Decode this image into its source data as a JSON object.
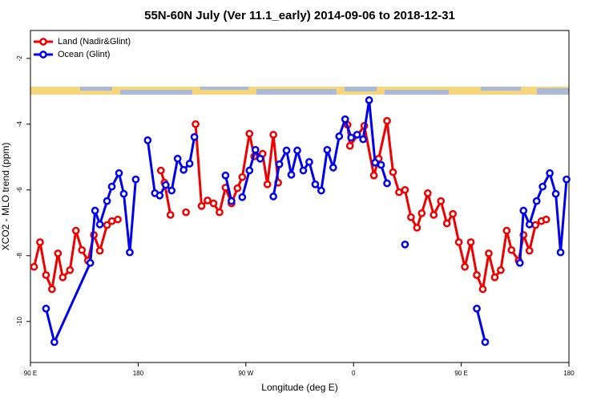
{
  "chart_data": {
    "type": "line",
    "title": "55N-60N July (Ver 11.1_early)   2014-09-06 to 2018-12-31",
    "xlabel": "Longitude (deg E)",
    "ylabel": "XCO2 - MLO trend (ppm)",
    "xlim": [
      90,
      540
    ],
    "ylim": [
      -11.25,
      -1.15
    ],
    "xticks": [
      {
        "value": 90,
        "label": "90 E"
      },
      180,
      {
        "value": 270,
        "label": "90 W"
      },
      {
        "value": 360,
        "label": "0"
      },
      {
        "value": 450,
        "label": "90 E"
      },
      {
        "value": 540,
        "label": "180"
      }
    ],
    "yticks": [
      -2,
      -4,
      -6,
      -8,
      -10
    ],
    "legend": "top-left",
    "series": [
      {
        "name": "Land (Nadir&Glint)",
        "color": "#ee0000",
        "x": [
          93,
          98,
          103,
          108,
          113,
          117,
          123,
          128,
          133,
          138,
          143,
          148,
          154,
          158,
          163,
          null,
          199,
          202,
          207,
          null,
          220,
          null,
          228,
          233,
          238,
          243,
          248,
          253,
          258,
          263,
          267,
          273,
          277,
          284,
          288,
          293,
          297,
          null,
          355,
          357,
          369,
          377,
          381,
          388,
          393,
          398,
          403,
          408,
          413,
          417,
          422,
          427,
          433,
          438,
          443,
          448,
          453,
          458,
          463,
          468,
          473,
          478,
          483,
          488,
          492,
          498,
          502,
          507,
          512,
          517,
          521
        ],
        "values": [
          -8.34,
          -7.59,
          -8.59,
          -9.02,
          -7.93,
          -8.66,
          -8.44,
          -7.24,
          -7.83,
          -8.15,
          -7.37,
          -7.85,
          -7.07,
          -6.95,
          -6.9,
          null,
          -5.41,
          -5.78,
          -6.76,
          null,
          -6.68,
          null,
          -4.0,
          -6.49,
          -6.32,
          -6.41,
          -6.68,
          -5.93,
          -6.41,
          -5.95,
          -5.61,
          -4.29,
          -4.98,
          -4.9,
          -5.83,
          -4.32,
          -5.78,
          null,
          -4.02,
          -4.66,
          -4.05,
          -5.56,
          -5.05,
          -3.9,
          -5.46,
          -6.07,
          -6.0,
          -6.83,
          -7.15,
          -6.71,
          -6.1,
          -6.76,
          -6.34,
          -7.02,
          -6.73,
          -7.59,
          -8.34,
          -7.59,
          -8.59,
          -9.02,
          -7.93,
          -8.66,
          -8.44,
          -7.24,
          -7.83,
          -8.15,
          -7.37,
          -7.85,
          -7.07,
          -6.95,
          -6.9
        ]
      },
      {
        "name": "Ocean (Glint)",
        "color": "#0000ee",
        "x": [
          103,
          110,
          140,
          144,
          148,
          154,
          158,
          164,
          168,
          173,
          178,
          null,
          188,
          194,
          198,
          203,
          208,
          213,
          218,
          223,
          227,
          null,
          253,
          258,
          null,
          267,
          273,
          278,
          282,
          null,
          293,
          298,
          304,
          308,
          313,
          318,
          323,
          328,
          333,
          338,
          343,
          348,
          353,
          358,
          363,
          368,
          373,
          378,
          383,
          388,
          null,
          403,
          null,
          463,
          470,
          null,
          499,
          502,
          507,
          513,
          518,
          524,
          529,
          533,
          538
        ],
        "values": [
          -9.61,
          -10.63,
          -8.22,
          -6.63,
          -7.05,
          -6.34,
          -5.9,
          -5.49,
          -6.12,
          -7.9,
          -5.68,
          null,
          -4.49,
          -6.1,
          -6.17,
          -5.85,
          -6.02,
          -5.05,
          -5.39,
          -5.2,
          -4.39,
          null,
          -5.56,
          -6.34,
          null,
          -6.22,
          -5.41,
          -4.78,
          -5.05,
          null,
          -6.2,
          -5.22,
          -4.8,
          -5.54,
          -4.8,
          -5.41,
          -5.15,
          -5.83,
          -6.02,
          -4.78,
          -5.32,
          -4.37,
          -3.85,
          -4.41,
          -4.32,
          -4.46,
          -3.27,
          -5.17,
          -5.24,
          -5.8,
          null,
          -7.66,
          null,
          -9.61,
          -10.63,
          null,
          -8.22,
          -6.63,
          -7.05,
          -6.34,
          -5.9,
          -5.49,
          -6.12,
          -7.9,
          -5.68
        ]
      }
    ]
  }
}
